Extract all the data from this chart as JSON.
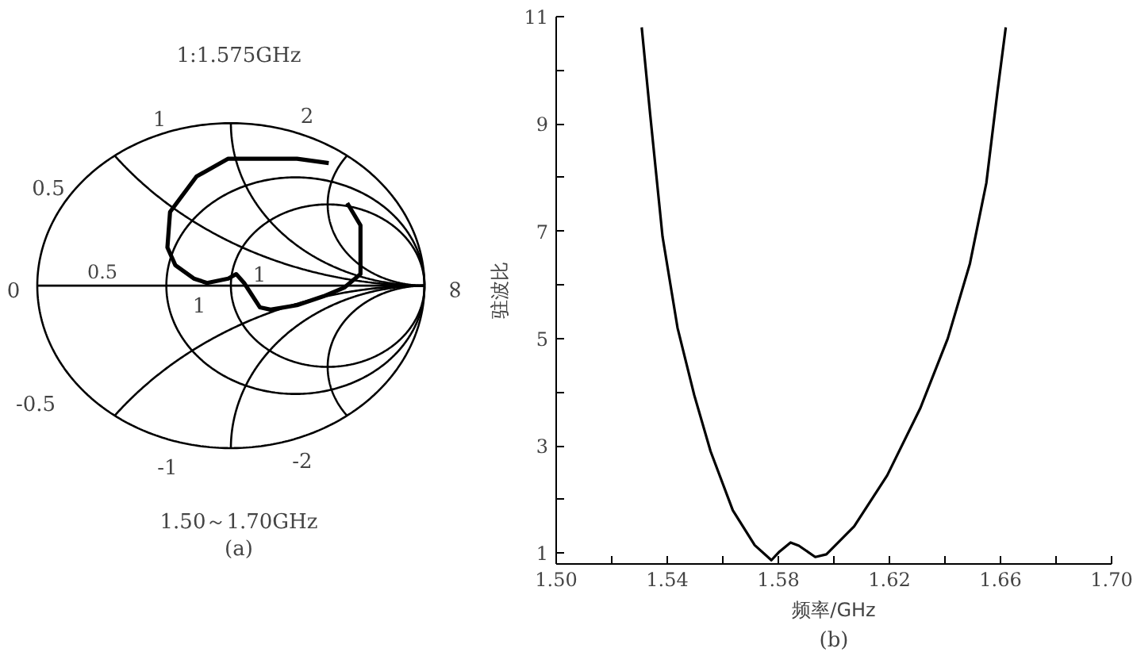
{
  "chart_data": [
    {
      "type": "other",
      "annotations": [
        "1:1.575GHz",
        "1",
        "2",
        "0.5",
        "0",
        "0.5",
        "1",
        "1",
        "∞",
        "-0.5",
        "-1",
        "-2",
        "1.50～1.70GHz",
        "(a)"
      ]
    },
    {
      "type": "line",
      "xlabel": "频率/GHz",
      "ylabel": "驻波比",
      "annotations": [
        "(b)"
      ],
      "color": "#000000",
      "grid": false,
      "marker": "none",
      "line_style": "solid",
      "x": [
        1.5308,
        1.5338,
        1.5383,
        1.5437,
        1.5497,
        1.5556,
        1.5636,
        1.5715,
        1.5775,
        1.5804,
        1.5844,
        1.5874,
        1.5933,
        1.5973,
        1.6073,
        1.6192,
        1.6311,
        1.641,
        1.649,
        1.6549,
        1.6589,
        1.6619
      ],
      "values": [
        10.8,
        9.2,
        6.9,
        5.2,
        3.95,
        2.9,
        1.8,
        1.15,
        0.87,
        1.03,
        1.2,
        1.14,
        0.93,
        0.98,
        1.5,
        2.45,
        3.7,
        5.0,
        6.4,
        7.9,
        9.6,
        10.8
      ],
      "xlim": [
        1.5,
        1.7
      ],
      "ylim": [
        0.8,
        11
      ],
      "xticks": [
        {
          "value": 1.5,
          "label": "1.50"
        },
        {
          "value": 1.52,
          "label": null
        },
        1.54,
        {
          "value": 1.56,
          "label": null
        },
        1.58,
        {
          "value": 1.6,
          "label": null
        },
        1.62,
        {
          "value": 1.64,
          "label": null
        },
        1.66,
        {
          "value": 1.68,
          "label": null
        },
        {
          "value": 1.7,
          "label": "1.70"
        }
      ],
      "yticks": [
        1,
        {
          "value": 2,
          "label": null
        },
        3,
        {
          "value": 4,
          "label": null
        },
        5,
        {
          "value": 6,
          "label": null
        },
        7,
        {
          "value": 8,
          "label": null
        },
        9,
        {
          "value": 10,
          "label": null
        },
        11
      ]
    }
  ]
}
